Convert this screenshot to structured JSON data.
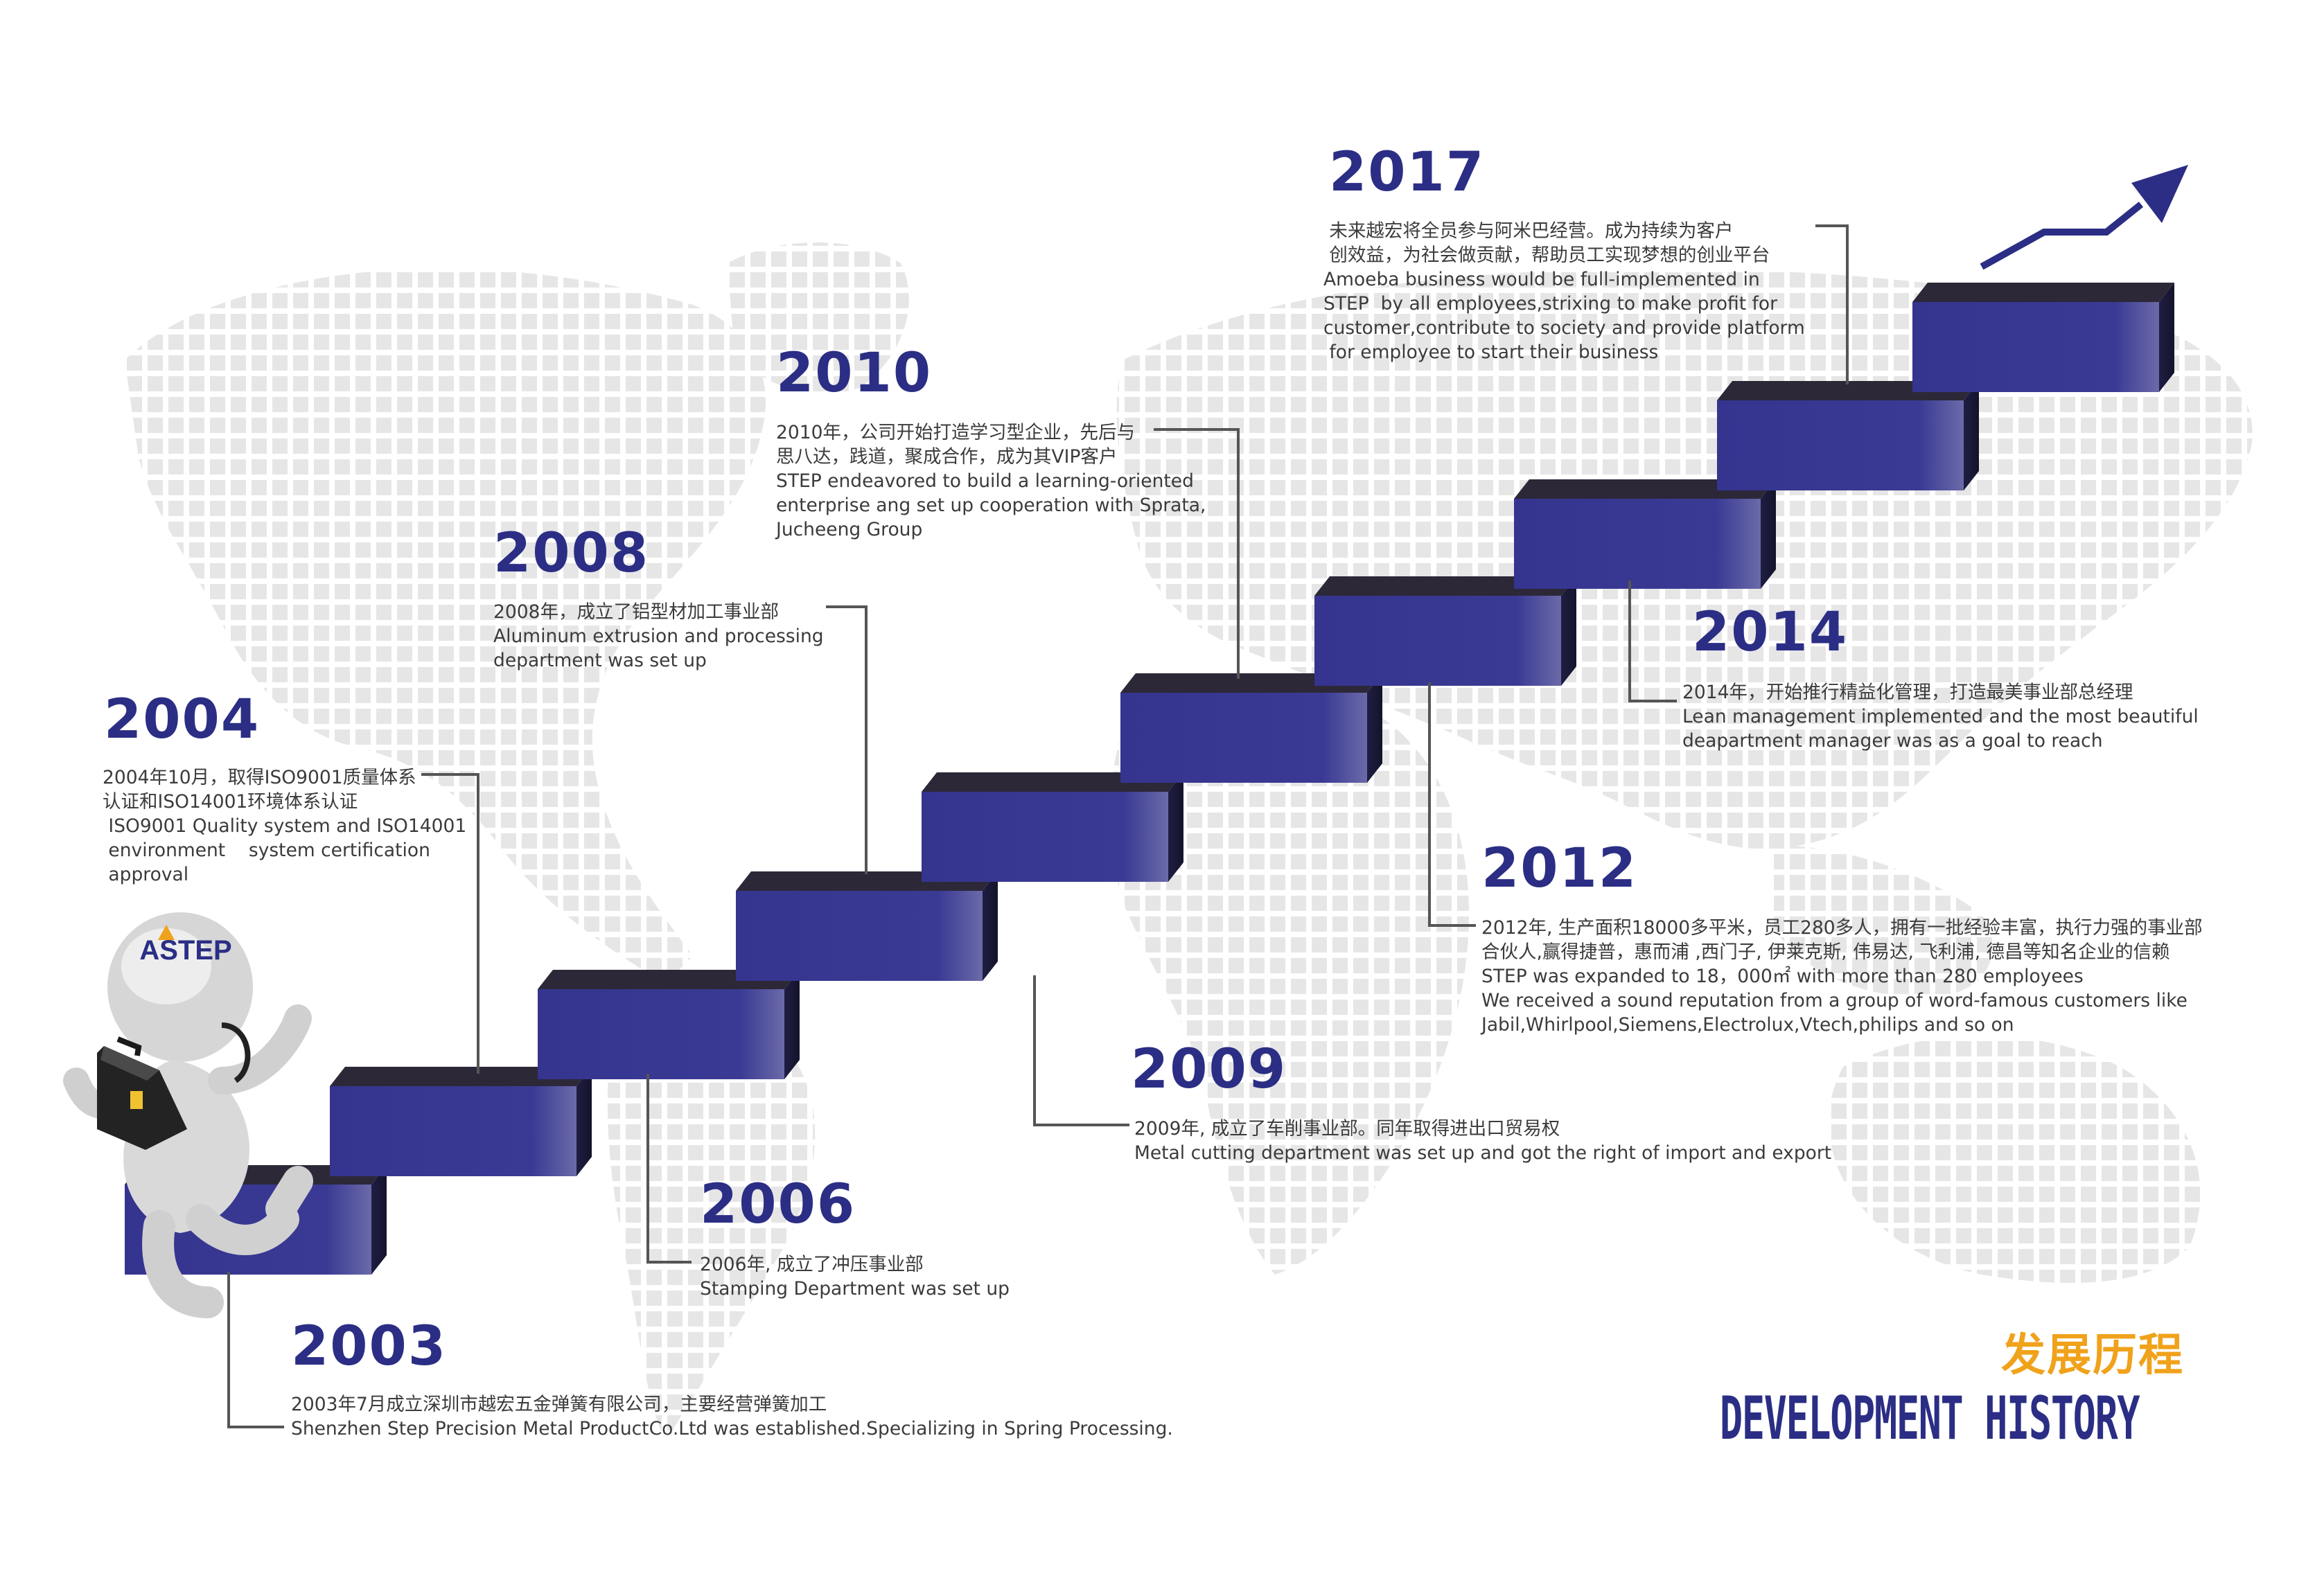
{
  "milestones": [
    {
      "year": "2003",
      "lines": [
        "2003年7月成立深圳市越宏五金弹簧有限公司，主要经营弹簧加工",
        "Shenzhen Step Precision Metal ProductCo.Ltd was established.Specializing in Spring Processing."
      ]
    },
    {
      "year": "2004",
      "lines": [
        "2004年10月，取得ISO9001质量体系",
        "认证和ISO14001环境体系认证",
        " ISO9001 Quality system and ISO14001",
        " environment    system certification",
        " approval"
      ]
    },
    {
      "year": "2006",
      "lines": [
        "2006年, 成立了冲压事业部",
        "Stamping Department was set up"
      ]
    },
    {
      "year": "2008",
      "lines": [
        "2008年，成立了铝型材加工事业部",
        "Aluminum extrusion and processing",
        "department was set up"
      ]
    },
    {
      "year": "2009",
      "lines": [
        "2009年, 成立了车削事业部。同年取得进出口贸易权",
        "Metal cutting department was set up and got the right of import and export"
      ]
    },
    {
      "year": "2010",
      "lines": [
        "2010年，公司开始打造学习型企业，先后与",
        "思八达，践道，聚成合作，成为其VIP客户",
        "STEP endeavored to build a learning-oriented",
        "enterprise ang set up cooperation with Sprata,",
        "Jucheeng Group"
      ]
    },
    {
      "year": "2012",
      "lines": [
        "2012年, 生产面积18000多平米，员工280多人，拥有一批经验丰富，执行力强的事业部",
        "合伙人,赢得捷普，惠而浦 ,西门子, 伊莱克斯, 伟易达, 飞利浦, 德昌等知名企业的信赖",
        "STEP was expanded to 18，000㎡ with more than 280 employees",
        "We received a sound reputation from a group of word-famous customers like",
        "Jabil,Whirlpool,Siemens,Electrolux,Vtech,philips and so on"
      ]
    },
    {
      "year": "2014",
      "lines": [
        "2014年，开始推行精益化管理，打造最美事业部总经理",
        "Lean management implemented and the most beautiful",
        "deapartment manager was as a goal to reach"
      ]
    },
    {
      "year": "2017",
      "lines": [
        " 未来越宏将全员参与阿米巴经营。成为持续为客户",
        " 创效益，为社会做贡献，帮助员工实现梦想的创业平台",
        "Amoeba business would be full-implemented in",
        "STEP  by all employees,strixing to make profit for",
        "customer,contribute to society and provide platform",
        " for employee to start their business"
      ]
    }
  ],
  "heading": {
    "cn": "发展历程",
    "en": "DEVELOPMENT HISTORY"
  },
  "mascot": {
    "logo_text": "STEP"
  },
  "colors": {
    "step_face": "#35348f",
    "step_top": "#2c2838",
    "year": "#2b2e84",
    "accent": "#f0a21b",
    "map_dots": "#e4e4e4"
  },
  "icons": [
    "stair-step",
    "mascot-figure",
    "briefcase-icon",
    "growth-arrow-icon",
    "world-map-dots"
  ]
}
